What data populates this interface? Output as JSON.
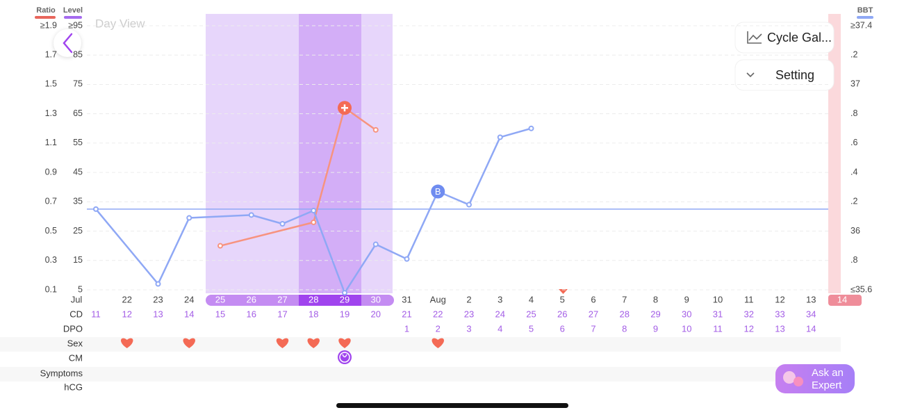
{
  "header": {
    "title": "Day View"
  },
  "buttons": {
    "cycle": "Cycle Gal...",
    "setting": "Setting",
    "expert": [
      "Ask an",
      "Expert"
    ]
  },
  "chart_data": {
    "type": "line",
    "categories": [
      "Jul",
      "22",
      "23",
      "24",
      "25",
      "26",
      "27",
      "28",
      "29",
      "30",
      "31",
      "Aug",
      "2",
      "3",
      "4",
      "5",
      "6",
      "7",
      "8",
      "9",
      "10",
      "11",
      "12",
      "13",
      "14"
    ],
    "ylabel": "Ratio",
    "ycolor": "#e8665c",
    "ylim": [
      0.1,
      1.9
    ],
    "yticks": [
      {
        "value": 1.9,
        "label": "≥1.9"
      },
      1.7,
      1.5,
      1.3,
      1.1,
      0.9,
      0.7,
      0.5,
      0.3,
      0.1
    ],
    "level_axis": {
      "label": "Level",
      "color": "#a56bef",
      "lim": [
        5,
        95
      ],
      "ticks": [
        {
          "value": 95,
          "label": "≥95"
        },
        85,
        75,
        65,
        55,
        45,
        35,
        25,
        15,
        5
      ]
    },
    "y2label": "BBT",
    "y2color": "#8fa8f5",
    "y2lim": [
      35.6,
      37.4
    ],
    "y2ticks": [
      {
        "value": 37.4,
        "label": "≥37.4"
      },
      {
        "value": 37.2,
        "label": ".2"
      },
      37,
      {
        "value": 36.8,
        "label": ".8"
      },
      {
        "value": 36.6,
        "label": ".6"
      },
      {
        "value": 36.4,
        "label": ".4"
      },
      {
        "value": 36.2,
        "label": ".2"
      },
      36,
      {
        "value": 35.8,
        "label": ".8"
      },
      {
        "value": 35.6,
        "label": "≤35.6"
      }
    ],
    "grid": true,
    "coverline": 36.15,
    "series": [
      {
        "name": "Ratio",
        "color": "#f7937f",
        "axis": "y",
        "x": [
          "25",
          "28",
          "29",
          "30"
        ],
        "values": [
          0.4,
          0.56,
          1.34,
          1.19
        ],
        "marker": {
          "x": "29"
        }
      },
      {
        "name": "BBT",
        "color": "#8fa8f5",
        "axis": "y2",
        "x": [
          "Jul",
          "23",
          "24",
          "26",
          "27",
          "28",
          "29",
          "30",
          "31",
          "Aug",
          "2",
          "3",
          "4"
        ],
        "values": [
          36.15,
          35.64,
          36.09,
          36.11,
          36.05,
          36.14,
          35.58,
          35.91,
          35.81,
          36.27,
          36.18,
          36.64,
          36.7
        ],
        "marker": {
          "x": "Aug",
          "label": "B"
        }
      }
    ]
  },
  "rows": [
    {
      "name": "CD",
      "values": [
        11,
        12,
        13,
        14,
        15,
        16,
        17,
        18,
        19,
        20,
        21,
        22,
        23,
        24,
        25,
        26,
        27,
        28,
        29,
        30,
        31,
        32,
        33,
        34,
        null
      ]
    },
    {
      "name": "DPO",
      "values": [
        null,
        null,
        null,
        null,
        null,
        null,
        null,
        null,
        null,
        null,
        1,
        2,
        3,
        4,
        5,
        6,
        7,
        8,
        9,
        10,
        11,
        12,
        13,
        14,
        null
      ]
    },
    {
      "name": "Sex",
      "days": [
        "22",
        "24",
        "27",
        "28",
        "29",
        "Aug"
      ]
    },
    {
      "name": "CM",
      "days": [
        "29"
      ]
    },
    {
      "name": "Symptoms"
    },
    {
      "name": "hCG"
    }
  ]
}
